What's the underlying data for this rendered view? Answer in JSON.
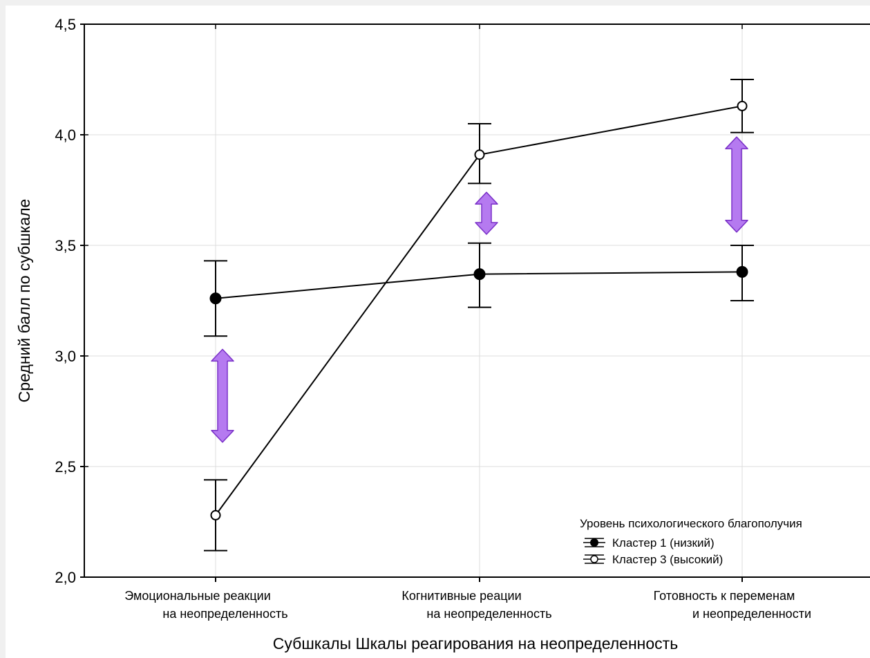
{
  "chart_data": {
    "type": "line",
    "title": "",
    "xlabel": "Субшкалы Шкалы реагирования на неопределенность",
    "ylabel": "Средний балл по субшкале",
    "ylim": [
      2.0,
      4.5
    ],
    "yticks": [
      2.0,
      2.5,
      3.0,
      3.5,
      4.0,
      4.5
    ],
    "ytick_labels": [
      "2,0",
      "2,5",
      "3,0",
      "3,5",
      "4,0",
      "4,5"
    ],
    "categories": [
      [
        "Эмоциональные реакции",
        "на неопределенность"
      ],
      [
        "Когнитивные реации",
        "на неопределенность"
      ],
      [
        "Готовность к переменам",
        "и неопределенности"
      ]
    ],
    "grid": true,
    "legend": {
      "title": "Уровень психологического благополучия",
      "placement": "bottom-right"
    },
    "series": [
      {
        "name": "Кластер 1 (низкий)",
        "marker": "filled-circle",
        "color": "#000000",
        "values": [
          3.26,
          3.37,
          3.38
        ],
        "err_low": [
          3.09,
          3.22,
          3.25
        ],
        "err_high": [
          3.43,
          3.51,
          3.5
        ]
      },
      {
        "name": "Кластер 3 (высокий)",
        "marker": "open-circle",
        "color": "#000000",
        "values": [
          2.28,
          3.91,
          4.13
        ],
        "err_low": [
          2.12,
          3.78,
          4.01
        ],
        "err_high": [
          2.44,
          4.05,
          4.25
        ]
      }
    ],
    "annotations": [
      {
        "type": "double-arrow",
        "category_index": 0,
        "y_from": 2.61,
        "y_to": 3.03,
        "color": "#b57af0"
      },
      {
        "type": "double-arrow",
        "category_index": 1,
        "y_from": 3.55,
        "y_to": 3.74,
        "color": "#b57af0"
      },
      {
        "type": "double-arrow",
        "category_index": 2,
        "y_from": 3.56,
        "y_to": 3.99,
        "color": "#b57af0"
      }
    ]
  }
}
